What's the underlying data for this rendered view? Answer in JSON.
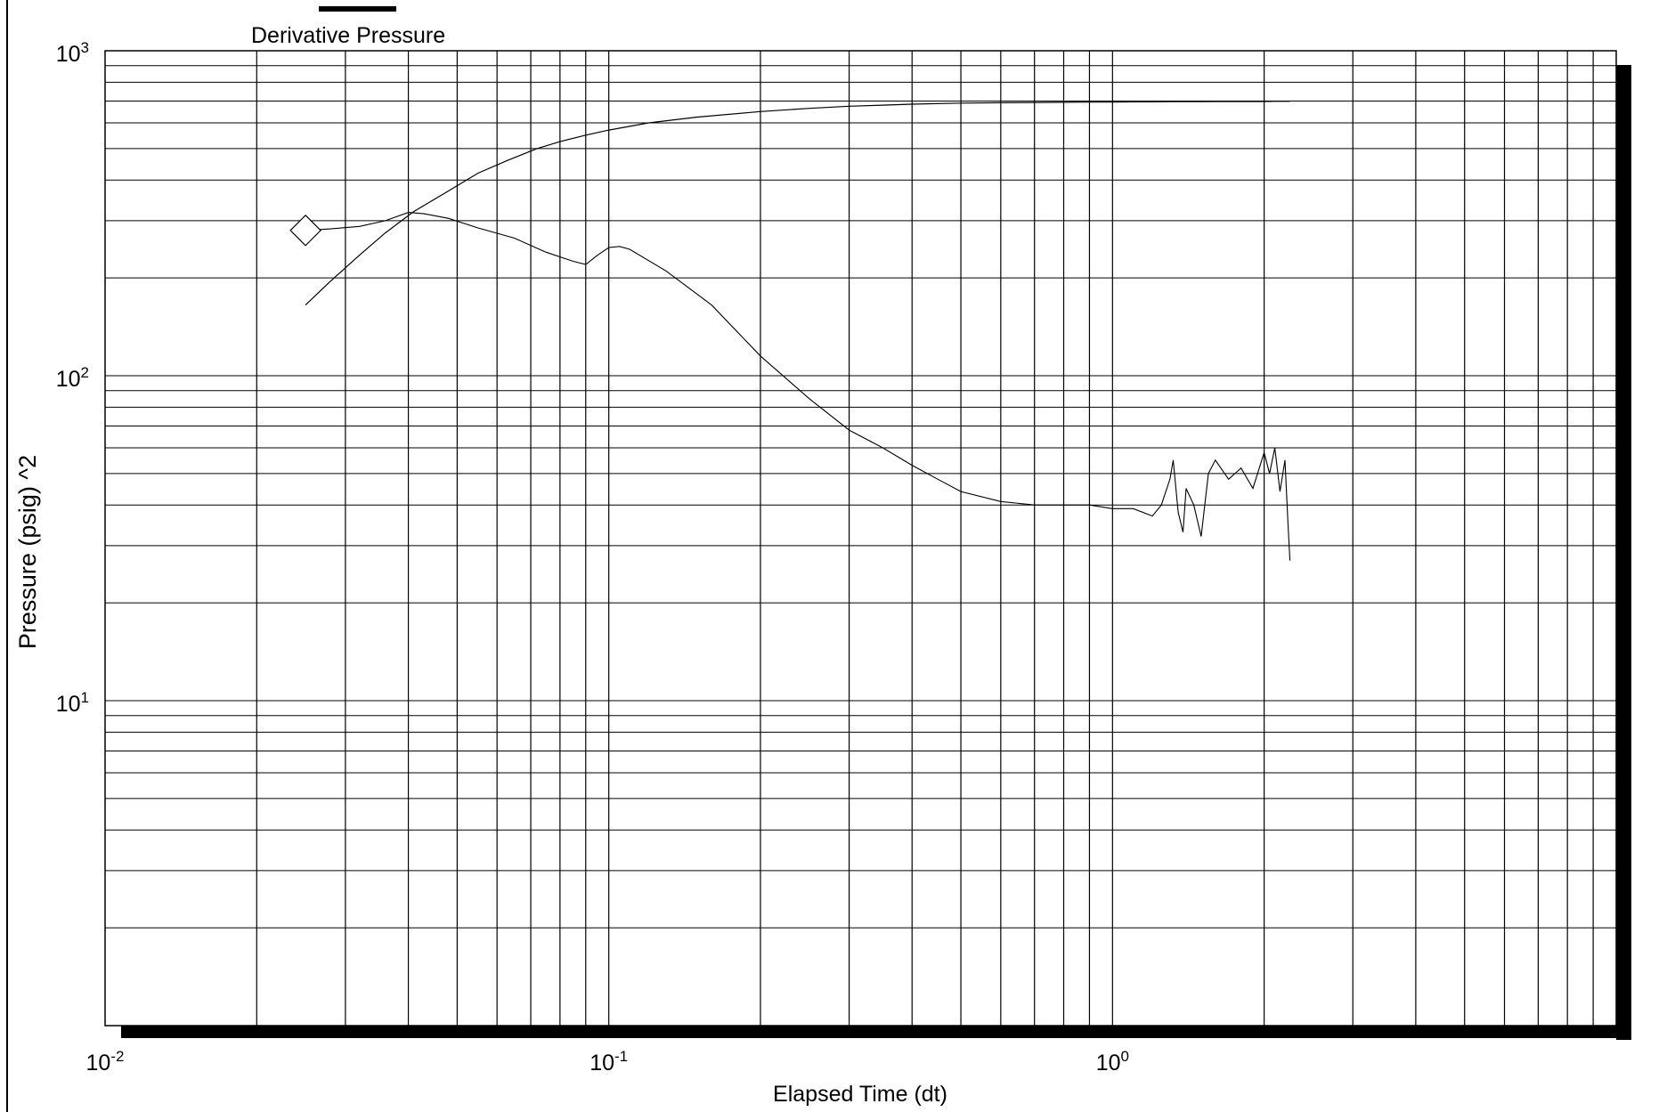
{
  "chart_data": {
    "type": "line",
    "title": "",
    "xlabel": "Elapsed Time (dt)",
    "ylabel": "Pressure (psig) ^2",
    "x_scale": "log",
    "y_scale": "log",
    "xlim": [
      0.01,
      10
    ],
    "ylim": [
      1.0,
      1000
    ],
    "grid": true,
    "legend": {
      "entries": [
        "Derivative Pressure"
      ],
      "placement": "top-left"
    },
    "x_ticks": [
      {
        "base": "10",
        "exp": "-2",
        "value": 0.01
      },
      {
        "base": "10",
        "exp": "-1",
        "value": 0.1
      },
      {
        "base": "10",
        "exp": "0",
        "value": 1
      }
    ],
    "y_ticks": [
      {
        "base": "10",
        "exp": "1",
        "value": 10
      },
      {
        "base": "10",
        "exp": "2",
        "value": 100
      },
      {
        "base": "10",
        "exp": "3",
        "value": 1000
      }
    ],
    "series": [
      {
        "name": "Derivative Pressure",
        "x": [
          0.025,
          0.028,
          0.032,
          0.036,
          0.041,
          0.048,
          0.055,
          0.063,
          0.072,
          0.08,
          0.09,
          0.1,
          0.12,
          0.15,
          0.2,
          0.25,
          0.3,
          0.35,
          0.4,
          0.5,
          0.6,
          0.7,
          0.8,
          0.9,
          1.0,
          1.1,
          1.2,
          1.3,
          1.4,
          1.5,
          1.6,
          1.7,
          1.8,
          1.9,
          2.0,
          2.1,
          2.2,
          2.25
        ],
        "y": [
          165,
          195,
          235,
          275,
          320,
          370,
          420,
          460,
          500,
          525,
          550,
          570,
          600,
          625,
          650,
          665,
          675,
          680,
          685,
          690,
          692,
          693,
          694,
          695,
          695,
          696,
          696,
          697,
          697,
          697,
          698,
          698,
          698,
          698,
          698,
          699,
          699,
          699
        ]
      },
      {
        "name": "",
        "x": [
          0.025,
          0.028,
          0.032,
          0.036,
          0.04,
          0.043,
          0.048,
          0.055,
          0.065,
          0.075,
          0.085,
          0.09,
          0.095,
          0.1,
          0.105,
          0.11,
          0.13,
          0.16,
          0.2,
          0.25,
          0.3,
          0.35,
          0.4,
          0.45,
          0.5,
          0.6,
          0.7,
          0.8,
          0.9,
          1.0,
          1.1,
          1.2,
          1.25,
          1.3,
          1.32,
          1.35,
          1.38,
          1.4,
          1.45,
          1.5,
          1.55,
          1.6,
          1.7,
          1.8,
          1.9,
          2.0,
          2.05,
          2.1,
          2.15,
          2.2,
          2.23,
          2.25
        ],
        "y": [
          280,
          283,
          288,
          300,
          318,
          315,
          305,
          285,
          265,
          240,
          225,
          220,
          235,
          248,
          250,
          245,
          210,
          165,
          115,
          85,
          68,
          60,
          53,
          48,
          44,
          41,
          40,
          40,
          40,
          39,
          39,
          37,
          40,
          48,
          55,
          38,
          33,
          45,
          40,
          32,
          50,
          55,
          48,
          52,
          45,
          58,
          50,
          60,
          44,
          55,
          35,
          27
        ]
      }
    ],
    "markers": [
      {
        "x": 0.025,
        "y": 280,
        "shape": "diamond"
      }
    ]
  }
}
